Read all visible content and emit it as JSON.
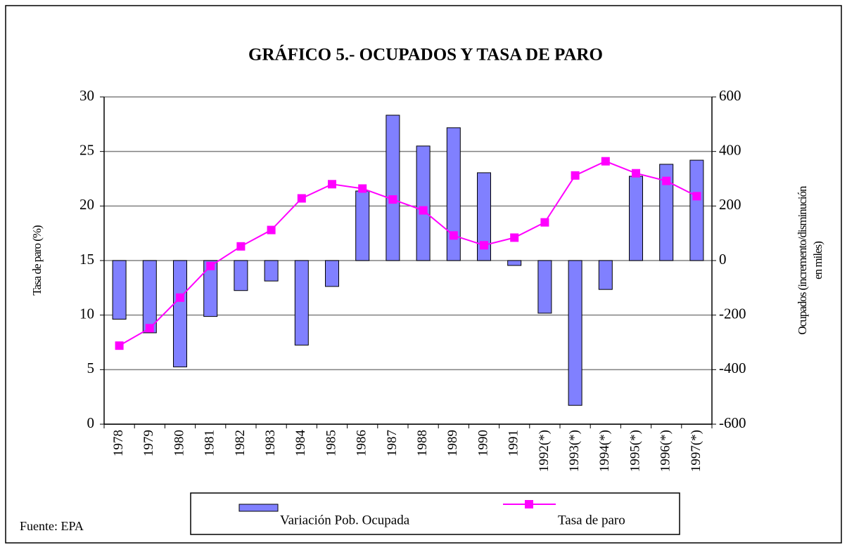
{
  "chart_data": {
    "type": "bar_line",
    "title": "GRÁFICO 5.- OCUPADOS Y TASA DE PARO",
    "ylabel": "Tasa de paro (%)",
    "y2label": [
      "Ocupados (incremento/disminución",
      "en miles)"
    ],
    "source": "Fuente: EPA",
    "categories": [
      "1978",
      "1979",
      "1980",
      "1981",
      "1982",
      "1983",
      "1984",
      "1985",
      "1986",
      "1987",
      "1988",
      "1989",
      "1990",
      "1991",
      "1992(*)",
      "1993(*)",
      "1994(*)",
      "1995(*)",
      "1996(*)",
      "1997(*)"
    ],
    "series": [
      {
        "name": "Variación Pob. Ocupada",
        "type": "bar",
        "axis": "y2",
        "color": "#8080ff",
        "values": [
          -215,
          -265,
          -390,
          -205,
          -110,
          -75,
          -310,
          -95,
          255,
          533,
          420,
          487,
          322,
          -18,
          -193,
          -531,
          -106,
          309,
          353,
          368
        ]
      },
      {
        "name": "Tasa de paro",
        "type": "line",
        "axis": "y",
        "color": "#ff00ff",
        "values": [
          7.2,
          8.8,
          11.6,
          14.5,
          16.3,
          17.8,
          20.7,
          22.0,
          21.6,
          20.6,
          19.6,
          17.3,
          16.4,
          17.1,
          18.5,
          22.8,
          24.1,
          23.0,
          22.3,
          20.9
        ]
      }
    ],
    "ylim": [
      0,
      30
    ],
    "yticks": [
      0,
      5,
      10,
      15,
      20,
      25,
      30
    ],
    "y2lim": [
      -600,
      600
    ],
    "y2ticks": [
      -600,
      -400,
      -200,
      0,
      200,
      400,
      600
    ],
    "grid": true,
    "legend": "bottom"
  }
}
